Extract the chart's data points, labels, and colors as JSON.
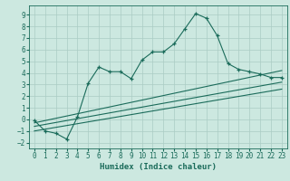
{
  "title": "",
  "xlabel": "Humidex (Indice chaleur)",
  "ylabel": "",
  "bg_color": "#cce8e0",
  "line_color": "#1a6b5a",
  "grid_color": "#aaccc4",
  "xlim": [
    -0.5,
    23.5
  ],
  "ylim": [
    -2.5,
    9.8
  ],
  "xticks": [
    0,
    1,
    2,
    3,
    4,
    5,
    6,
    7,
    8,
    9,
    10,
    11,
    12,
    13,
    14,
    15,
    16,
    17,
    18,
    19,
    20,
    21,
    22,
    23
  ],
  "yticks": [
    -2,
    -1,
    0,
    1,
    2,
    3,
    4,
    5,
    6,
    7,
    8,
    9
  ],
  "curve_x": [
    0,
    1,
    2,
    3,
    4,
    5,
    6,
    7,
    8,
    9,
    10,
    11,
    12,
    13,
    14,
    15,
    16,
    17,
    18,
    19,
    20,
    21,
    22,
    23
  ],
  "curve_y": [
    -0.1,
    -1.0,
    -1.2,
    -1.7,
    0.2,
    3.1,
    4.5,
    4.1,
    4.1,
    3.5,
    5.1,
    5.8,
    5.8,
    6.5,
    7.8,
    9.1,
    8.7,
    7.2,
    4.8,
    4.3,
    4.1,
    3.9,
    3.6,
    3.6
  ],
  "line1_x": [
    0,
    23
  ],
  "line1_y": [
    -0.3,
    4.2
  ],
  "line2_x": [
    0,
    23
  ],
  "line2_y": [
    -0.6,
    3.2
  ],
  "line3_x": [
    0,
    23
  ],
  "line3_y": [
    -1.0,
    2.6
  ],
  "tick_fontsize": 5.5,
  "label_fontsize": 6.5
}
